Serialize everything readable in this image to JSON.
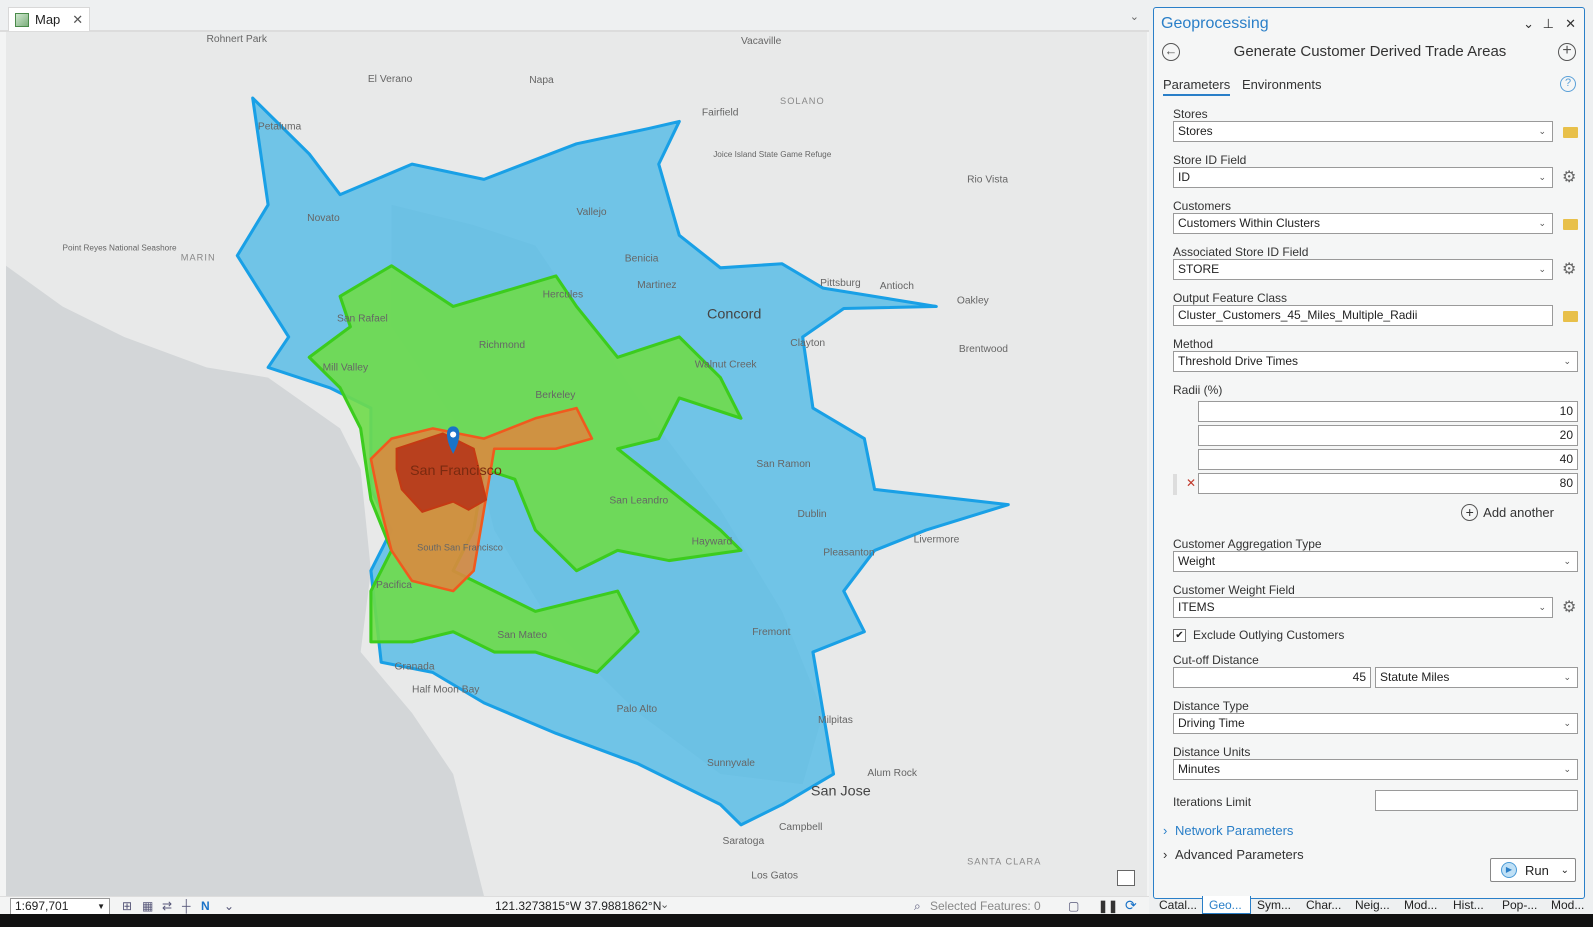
{
  "map_tab": {
    "label": "Map"
  },
  "map_labels": {
    "rohnert_park": "Rohnert Park",
    "vacaville": "Vacaville",
    "el_verano": "El Verano",
    "napa": "Napa",
    "petaluma": "Petaluma",
    "fairfield": "Fairfield",
    "solano": "SOLANO",
    "joice": "Joice Island State Game Refuge",
    "novato": "Novato",
    "vallejo": "Vallejo",
    "rio_vista": "Rio Vista",
    "point_reyes": "Point Reyes National Seashore",
    "marin": "MARIN",
    "benicia": "Benicia",
    "martinez": "Martinez",
    "pittsburg": "Pittsburg",
    "antioch": "Antioch",
    "oakley": "Oakley",
    "concord": "Concord",
    "san_rafael": "San Rafael",
    "hercules": "Hercules",
    "richmond": "Richmond",
    "clayton": "Clayton",
    "mill_valley": "Mill Valley",
    "brentwood": "Brentwood",
    "walnut_creek": "Walnut Creek",
    "berkeley": "Berkeley",
    "san_francisco": "San Francisco",
    "san_ramon": "San Ramon",
    "san_leandro": "San Leandro",
    "dublin": "Dublin",
    "livermore": "Livermore",
    "hayward": "Hayward",
    "pleasanton": "Pleasanton",
    "south_sf": "South San Francisco",
    "pacifica": "Pacifica",
    "san_mateo": "San Mateo",
    "fremont": "Fremont",
    "granada": "Granada",
    "half_moon_bay": "Half Moon Bay",
    "palo_alto": "Palo Alto",
    "milpitas": "Milpitas",
    "sunnyvale": "Sunnyvale",
    "alum_rock": "Alum Rock",
    "san_jose": "San Jose",
    "campbell": "Campbell",
    "saratoga": "Saratoga",
    "los_gatos": "Los Gatos",
    "santa_clara": "SANTA CLARA"
  },
  "trade_area_colors": {
    "outer": "#5bbde6",
    "outer_stroke": "#19a0e6",
    "mid": "#6fdc4a",
    "mid_stroke": "#3ccc1e",
    "inner": "#e07a3a",
    "core": "#b8401e"
  },
  "status_bar": {
    "scale": "1:697,701",
    "coordinates": "121.3273815°W 37.9881862°N",
    "selected_features": "Selected Features: 0"
  },
  "geoprocessing": {
    "pane_title": "Geoprocessing",
    "tool_title": "Generate Customer Derived Trade Areas",
    "tabs": [
      "Parameters",
      "Environments"
    ],
    "params": {
      "stores": {
        "label": "Stores",
        "value": "Stores"
      },
      "store_id_field": {
        "label": "Store ID Field",
        "value": "ID"
      },
      "customers": {
        "label": "Customers",
        "value": "Customers Within Clusters"
      },
      "assoc_store_id": {
        "label": "Associated Store ID Field",
        "value": "STORE"
      },
      "output_fc": {
        "label": "Output Feature Class",
        "value": "Cluster_Customers_45_Miles_Multiple_Radii"
      },
      "method": {
        "label": "Method",
        "value": "Threshold Drive Times"
      },
      "radii": {
        "label": "Radii (%)",
        "values": [
          "10",
          "20",
          "40",
          "80"
        ],
        "add_label": "Add another"
      },
      "aggregation_type": {
        "label": "Customer Aggregation Type",
        "value": "Weight"
      },
      "weight_field": {
        "label": "Customer Weight Field",
        "value": "ITEMS"
      },
      "exclude_outlying": {
        "label": "Exclude Outlying Customers",
        "checked": true
      },
      "cutoff": {
        "label": "Cut-off Distance",
        "value": "45",
        "unit": "Statute Miles"
      },
      "distance_type": {
        "label": "Distance Type",
        "value": "Driving Time"
      },
      "distance_units": {
        "label": "Distance Units",
        "value": "Minutes"
      },
      "iterations": {
        "label": "Iterations Limit",
        "value": ""
      }
    },
    "sections": [
      "Network Parameters",
      "Advanced Parameters"
    ],
    "run_label": "Run"
  },
  "bottom_tabs": [
    "Catal...",
    "Geo...",
    "Sym...",
    "Char...",
    "Neig...",
    "Mod...",
    "Hist...",
    "Pop-...",
    "Mod..."
  ],
  "active_bottom_tab": "Geo..."
}
